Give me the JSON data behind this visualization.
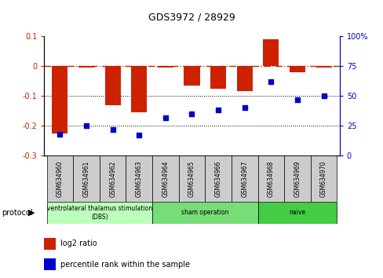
{
  "title": "GDS3972 / 28929",
  "samples": [
    "GSM634960",
    "GSM634961",
    "GSM634962",
    "GSM634963",
    "GSM634964",
    "GSM634965",
    "GSM634966",
    "GSM634967",
    "GSM634968",
    "GSM634969",
    "GSM634970"
  ],
  "log2_ratio": [
    -0.225,
    -0.005,
    -0.13,
    -0.155,
    -0.005,
    -0.065,
    -0.075,
    -0.085,
    0.09,
    -0.02,
    -0.005
  ],
  "percentile_rank": [
    18,
    25,
    22,
    17,
    32,
    35,
    38,
    40,
    62,
    47,
    50
  ],
  "bar_color": "#cc2200",
  "dot_color": "#0000cc",
  "ylim_left": [
    -0.3,
    0.1
  ],
  "ylim_right": [
    0,
    100
  ],
  "yticks_left": [
    -0.3,
    -0.2,
    -0.1,
    0.0,
    0.1
  ],
  "yticks_right": [
    0,
    25,
    50,
    75,
    100
  ],
  "groups": [
    {
      "label": "ventrolateral thalamus stimulation\n(DBS)",
      "start": 0,
      "end": 3,
      "color": "#bbffbb"
    },
    {
      "label": "sham operation",
      "start": 4,
      "end": 7,
      "color": "#77dd77"
    },
    {
      "label": "naive",
      "start": 8,
      "end": 10,
      "color": "#44cc44"
    }
  ],
  "protocol_label": "protocol",
  "legend_bar_label": "log2 ratio",
  "legend_dot_label": "percentile rank within the sample",
  "hline_color": "#cc2200",
  "dotline_color": "#000000",
  "sample_box_color": "#cccccc",
  "bar_width": 0.6
}
